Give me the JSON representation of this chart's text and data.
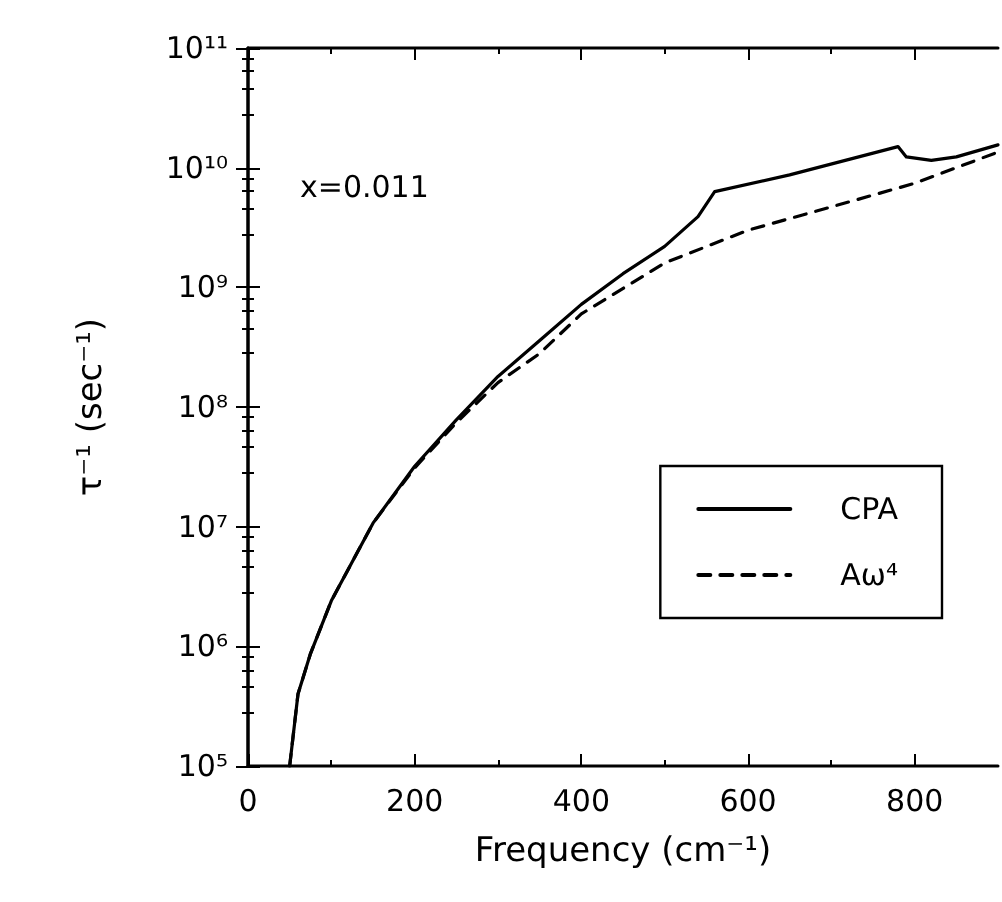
{
  "chart_data": {
    "type": "line",
    "xlabel": "Frequency (cm⁻¹)",
    "ylabel": "τ⁻¹ (sec⁻¹)",
    "annotations": [
      "x=0.011"
    ],
    "log": "y",
    "grid": false,
    "legend": "right",
    "marker": "none",
    "xlim": [
      0,
      900
    ],
    "xticks": [
      0,
      200,
      400,
      600,
      800
    ],
    "ylim": [
      100000.0,
      100000000000.0
    ],
    "yticks": [
      {
        "value": 100000.0,
        "label": "10⁵"
      },
      {
        "value": 1000000.0,
        "label": "10⁶"
      },
      {
        "value": 10000000.0,
        "label": "10⁷"
      },
      {
        "value": 100000000.0,
        "label": "10⁸"
      },
      {
        "value": 1000000000.0,
        "label": "10⁹"
      },
      {
        "value": 10000000000.0,
        "label": "10¹⁰"
      },
      {
        "value": 100000000000.0,
        "label": "10¹¹"
      }
    ],
    "series": [
      {
        "name": "CPA",
        "color": "#000000",
        "line_style": "solid",
        "x": [
          50,
          60,
          75,
          100,
          150,
          200,
          250,
          300,
          350,
          400,
          450,
          500,
          540,
          560,
          650,
          780,
          790,
          820,
          850,
          900
        ],
        "values": [
          100000.0,
          400000.0,
          870000.0,
          2400000.0,
          10700000.0,
          32000000.0,
          78000000.0,
          180000000.0,
          360000000.0,
          720000000.0,
          1300000000.0,
          2200000000.0,
          3900000000.0,
          6300000000.0,
          8700000000.0,
          15000000000.0,
          12300000000.0,
          11500000000.0,
          12300000000.0,
          15500000000.0
        ]
      },
      {
        "name": "Aω⁴",
        "color": "#000000",
        "line_style": "dashed",
        "x": [
          50,
          60,
          75,
          100,
          150,
          200,
          250,
          300,
          350,
          400,
          500,
          600,
          700,
          800,
          900
        ],
        "values": [
          100000.0,
          400000.0,
          870000.0,
          2400000.0,
          10700000.0,
          31000000.0,
          74000000.0,
          160000000.0,
          280000000.0,
          600000000.0,
          1600000000.0,
          3000000000.0,
          4700000000.0,
          7400000000.0,
          13500000000.0
        ]
      }
    ]
  }
}
